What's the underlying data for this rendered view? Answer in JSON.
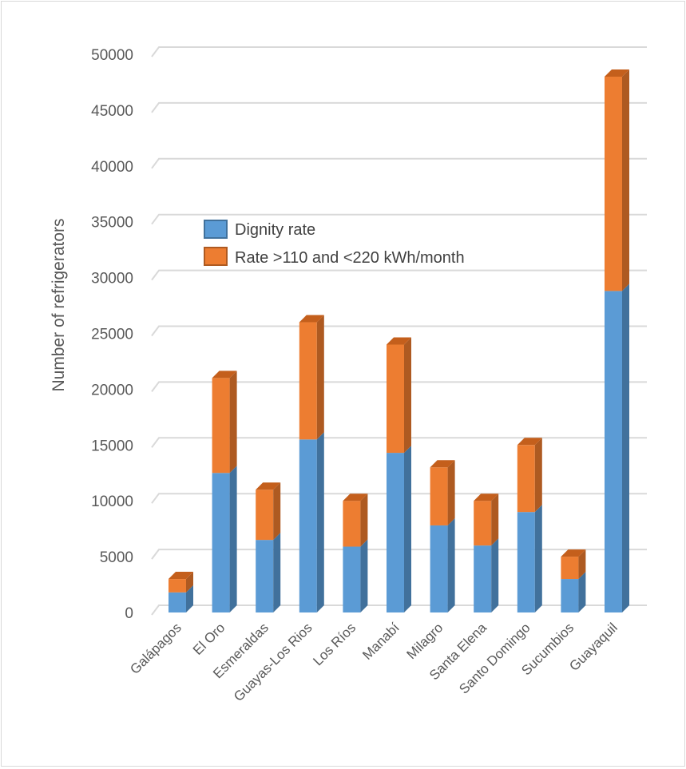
{
  "chart_data": {
    "type": "bar",
    "stacked": true,
    "style": "3d-column",
    "title": "",
    "xlabel": "",
    "ylabel": "Number of refrigerators",
    "ylim": [
      0,
      50000
    ],
    "yticks": [
      "0",
      "5000",
      "10000",
      "15000",
      "20000",
      "25000",
      "30000",
      "35000",
      "40000",
      "45000",
      "50000"
    ],
    "grid": true,
    "legend_position": "upper-left-inside",
    "categories": [
      "Galápagos",
      "El Oro",
      "Esmeraldas",
      "Guayas-Los Rios",
      "Los Ríos",
      "Manabí",
      "Milagro",
      "Santa Elena",
      "Santo Domingo",
      "Sucumbios",
      "Guayaquil"
    ],
    "series": [
      {
        "name": "Dignity rate",
        "color": "#5b9bd5",
        "values": [
          1800,
          12500,
          6500,
          15500,
          5900,
          14300,
          7800,
          6000,
          9000,
          3000,
          28800
        ]
      },
      {
        "name": "Rate >110 and <220 kWh/month",
        "color": "#ed7d31",
        "values": [
          1200,
          8500,
          4500,
          10500,
          4100,
          9700,
          5200,
          4000,
          6000,
          2000,
          19200
        ]
      }
    ]
  }
}
